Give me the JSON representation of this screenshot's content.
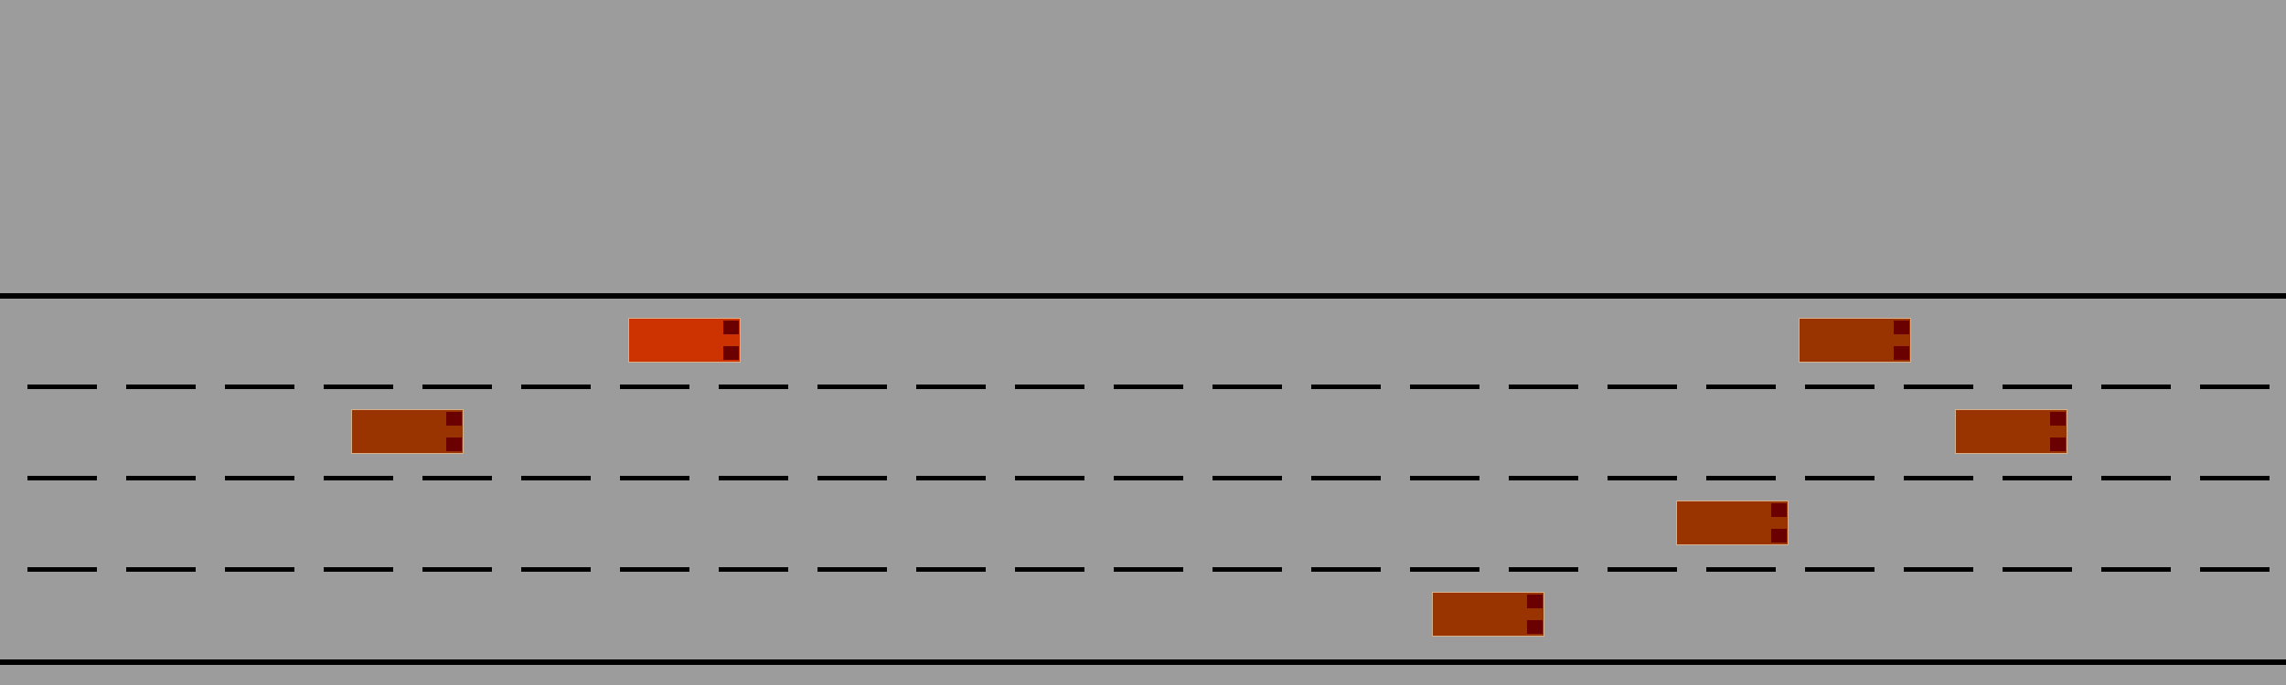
{
  "scene": {
    "background_color": "#9c9c9c",
    "road_line_color": "#000000",
    "lanes": 4,
    "lane_divider_style": "dashed"
  },
  "vehicles": [
    {
      "id": "ego",
      "role": "ego-vehicle",
      "color": "#cc3300"
    },
    {
      "id": "car-1",
      "role": "other-vehicle",
      "color": "#993300"
    },
    {
      "id": "car-2",
      "role": "other-vehicle",
      "color": "#993300"
    },
    {
      "id": "car-3",
      "role": "other-vehicle",
      "color": "#993300"
    },
    {
      "id": "car-4",
      "role": "other-vehicle",
      "color": "#993300"
    },
    {
      "id": "car-5",
      "role": "other-vehicle",
      "color": "#993300"
    }
  ]
}
